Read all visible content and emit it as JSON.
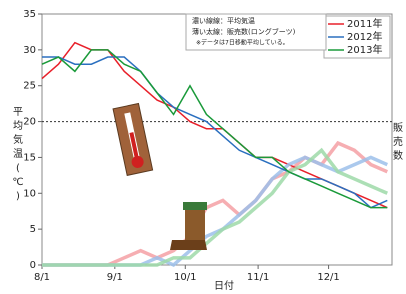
{
  "chart_data": {
    "type": "line",
    "annotations": [
      "濃い線線：平均気温",
      "薄い太線：販売数(ロングブーツ)",
      "※データは7日移動平均している。"
    ],
    "ylabel": "平均気温(℃)",
    "y2label": "販売数",
    "xlabel": "日付",
    "x": [
      "8/1",
      "8/8",
      "8/15",
      "8/22",
      "8/29",
      "9/5",
      "9/12",
      "9/19",
      "9/26",
      "10/3",
      "10/10",
      "10/17",
      "10/24",
      "10/31",
      "11/7",
      "11/14",
      "11/21",
      "11/28",
      "12/5",
      "12/12",
      "12/19",
      "12/26"
    ],
    "xlim": [
      "8/1",
      "12/28"
    ],
    "xticks": [
      "8/1",
      "9/1",
      "10/1",
      "11/1",
      "12/1"
    ],
    "ylim": [
      0,
      35
    ],
    "yticks": [
      0,
      5,
      10,
      15,
      20,
      25,
      30,
      35
    ],
    "reference_line": 20,
    "legend": "upper right",
    "series": [
      {
        "name": "2011年",
        "color": "#e8202a",
        "sales_color": "#f5a0a4",
        "values": [
          26,
          28,
          31,
          30,
          30,
          27,
          25,
          23,
          22,
          20,
          19,
          19,
          17,
          15,
          15,
          14,
          13,
          12,
          11,
          10,
          9,
          8
        ],
        "sales": [
          0,
          0,
          0,
          0,
          0,
          1,
          2,
          1,
          2,
          4,
          8,
          9,
          7,
          9,
          12,
          13,
          15,
          14,
          17,
          16,
          14,
          13
        ]
      },
      {
        "name": "2012年",
        "color": "#2a6fbf",
        "sales_color": "#9cc0ea",
        "values": [
          29,
          29,
          28,
          28,
          29,
          29,
          27,
          24,
          22,
          21,
          20,
          18,
          16,
          15,
          14,
          13,
          12,
          12,
          11,
          10,
          8,
          9
        ],
        "sales": [
          0,
          0,
          0,
          0,
          0,
          0,
          0,
          1,
          0,
          2,
          4,
          5,
          7,
          9,
          12,
          14,
          15,
          14,
          13,
          14,
          15,
          14
        ]
      },
      {
        "name": "2013年",
        "color": "#1a9a3a",
        "sales_color": "#9ed9a8",
        "values": [
          28,
          29,
          27,
          30,
          30,
          28,
          27,
          24,
          21,
          25,
          21,
          19,
          17,
          15,
          15,
          13,
          12,
          11,
          10,
          9,
          8,
          8
        ],
        "sales": [
          0,
          0,
          0,
          0,
          0,
          0,
          0,
          0,
          1,
          1,
          3,
          5,
          6,
          8,
          10,
          13,
          14,
          16,
          13,
          12,
          11,
          10
        ]
      }
    ]
  }
}
